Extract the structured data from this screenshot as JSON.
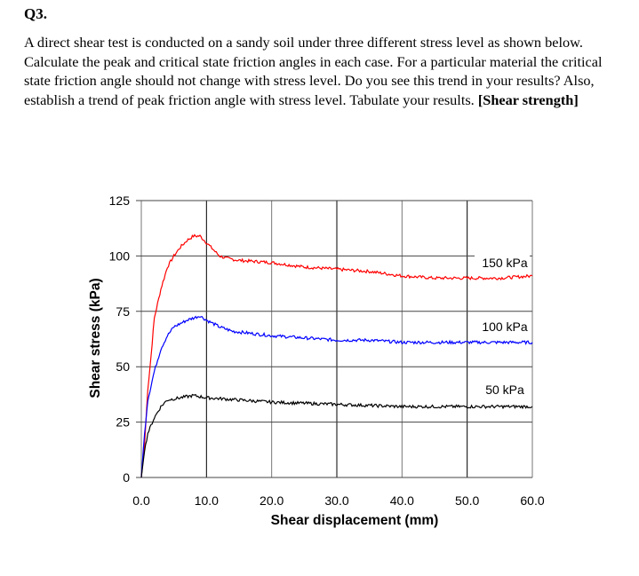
{
  "question": {
    "number": "Q3.",
    "text": "A direct shear test is conducted on a sandy soil under three different stress level as shown below. Calculate the peak and critical state friction angles in each case. For a particular material the critical state friction angle should not change with stress level. Do you see this trend in your results? Also, establish a trend of peak friction angle with stress level. Tabulate your results.",
    "tag": "[Shear strength]"
  },
  "chart_data": {
    "type": "line",
    "xlabel": "Shear displacement (mm)",
    "ylabel": "Shear stress (kPa)",
    "xlim": [
      0,
      60
    ],
    "ylim": [
      0,
      125
    ],
    "xticks": [
      "0.0",
      "10.0",
      "20.0",
      "30.0",
      "40.0",
      "50.0",
      "60.0"
    ],
    "yticks": [
      "0",
      "25",
      "50",
      "75",
      "100",
      "125"
    ],
    "grid": true,
    "series": [
      {
        "name": "150 kPa",
        "color": "#ff0000",
        "x": [
          0,
          0.5,
          1,
          1.5,
          2,
          3,
          4,
          5,
          6,
          7,
          8,
          9,
          10,
          11,
          12,
          13,
          15,
          20,
          25,
          30,
          35,
          40,
          45,
          50,
          55,
          60
        ],
        "y": [
          0,
          15,
          40,
          55,
          72,
          85,
          95,
          100,
          104,
          107,
          109,
          109,
          106,
          103,
          100,
          99,
          98,
          97,
          95,
          94,
          93,
          91,
          90,
          90,
          90,
          91
        ]
      },
      {
        "name": "100 kPa",
        "color": "#0000ff",
        "x": [
          0,
          0.5,
          1,
          2,
          3,
          4,
          5,
          7,
          9,
          10,
          12,
          14,
          20,
          25,
          30,
          35,
          40,
          50,
          60
        ],
        "y": [
          0,
          20,
          35,
          48,
          58,
          64,
          68,
          71,
          73,
          71,
          68,
          66,
          64,
          63,
          62,
          62,
          61,
          61,
          61
        ]
      },
      {
        "name": "50 kPa",
        "color": "#000000",
        "x": [
          0,
          0.5,
          1,
          2,
          3,
          4,
          6,
          8,
          10,
          15,
          20,
          30,
          40,
          50,
          60
        ],
        "y": [
          0,
          12,
          20,
          27,
          32,
          35,
          36,
          37,
          36,
          35,
          34,
          33,
          32,
          32,
          32
        ]
      }
    ]
  }
}
